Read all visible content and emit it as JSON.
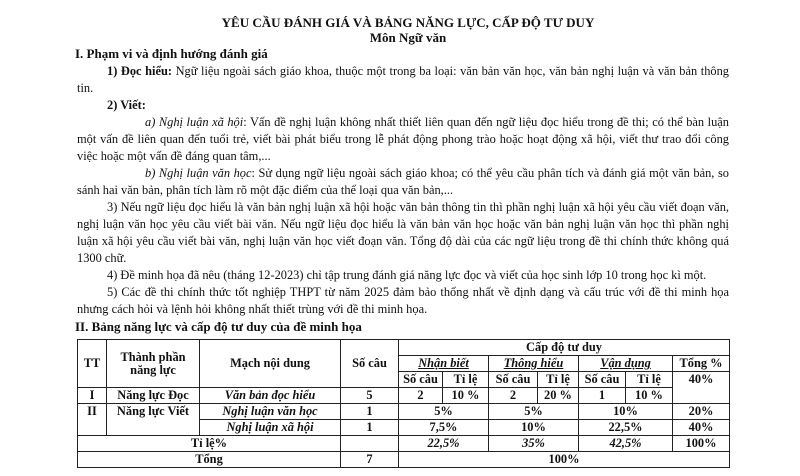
{
  "title": "YÊU CẦU ĐÁNH GIÁ VÀ BẢNG NĂNG LỰC, CẤP ĐỘ TƯ DUY",
  "subtitle": "Môn Ngữ văn",
  "section1": {
    "heading": "I. Phạm vi và định hướng đánh giá",
    "p1_lead": "1) Đọc hiểu:",
    "p1_text": " Ngữ liệu ngoài sách giáo khoa, thuộc một trong ba loại: văn bản văn học, văn bản nghị luận và văn bản thông tin.",
    "p2_lead": "2) Viết:",
    "pa_lead": "a) Nghị luận xã hội",
    "pa_text": ": Vấn đề nghị luận không nhất thiết liên quan đến ngữ liệu đọc hiểu trong đề thi; có thể bàn luận một vấn đề liên quan đến tuổi trẻ, viết bài phát biểu trong lễ phát động phong trào hoặc hoạt động xã hội, viết thư trao đổi công việc hoặc một vấn đề đáng quan tâm,...",
    "pb_lead": "b) Nghị luận văn học",
    "pb_text": ": Sử dụng ngữ liệu ngoài sách giáo khoa; có thể yêu cầu phân tích và đánh giá một văn bản, so sánh hai văn bản, phân tích làm rõ một đặc điểm của thể loại qua văn bản,...",
    "p3": "3) Nếu ngữ liệu đọc hiểu là văn bản nghị luận xã hội hoặc văn bản thông tin thì phần nghị luận xã hội yêu cầu viết đoạn văn, nghị luận văn học yêu cầu viết bài văn. Nếu ngữ liệu đọc hiểu là văn bản văn học hoặc văn bản nghị luận văn học thì phần nghị luận xã hội yêu cầu viết bài văn, nghị luận văn học viết đoạn văn. Tổng độ dài của các ngữ liệu trong đề thi chính thức không quá 1300 chữ.",
    "p4": "4) Đề minh họa đã nêu (tháng 12-2023) chỉ tập trung đánh giá năng lực đọc và viết của học sinh lớp 10 trong học kì một.",
    "p5": "5) Các đề thi chính thức tốt nghiệp THPT từ năm 2025 đảm bảo thống nhất về định dạng và cấu trúc với đề thi minh họa nhưng cách hỏi và lệnh hỏi không nhất thiết trùng với đề thi minh họa."
  },
  "section2": {
    "heading": "II. Bảng năng lực và cấp độ tư duy của đề minh họa"
  },
  "table": {
    "h_tt": "TT",
    "h_component": "Thành phần năng lực",
    "h_content": "Mạch nội dung",
    "h_count": "Số câu",
    "h_level": "Cấp độ tư duy",
    "h_nb": "Nhận biết",
    "h_th": "Thông hiểu",
    "h_vd": "Vận dụng",
    "h_total": "Tổng %",
    "h_socau": "Số câu",
    "h_tile": "Tỉ lệ",
    "r1": {
      "tt": "I",
      "comp": "Năng lực Đọc",
      "content": "Văn bản đọc hiểu",
      "count": "5",
      "nb_n": "2",
      "nb_p": "10 %",
      "th_n": "2",
      "th_p": "20 %",
      "vd_n": "1",
      "vd_p": "10 %",
      "total": "40%"
    },
    "r2": {
      "tt": "II",
      "comp": "Năng lực Viết",
      "content": "Nghị luận văn học",
      "count": "1",
      "nb": "5%",
      "th": "5%",
      "vd": "10%",
      "total": "20%"
    },
    "r3": {
      "content": "Nghị luận xã hội",
      "count": "1",
      "nb": "7,5%",
      "th": "10%",
      "vd": "22,5%",
      "total": "40%"
    },
    "ratio": {
      "label": "Tỉ lệ%",
      "nb": "22,5%",
      "th": "35%",
      "vd": "42,5%",
      "total": "100%"
    },
    "sum": {
      "label": "Tổng",
      "count": "7",
      "total": "100%"
    }
  }
}
